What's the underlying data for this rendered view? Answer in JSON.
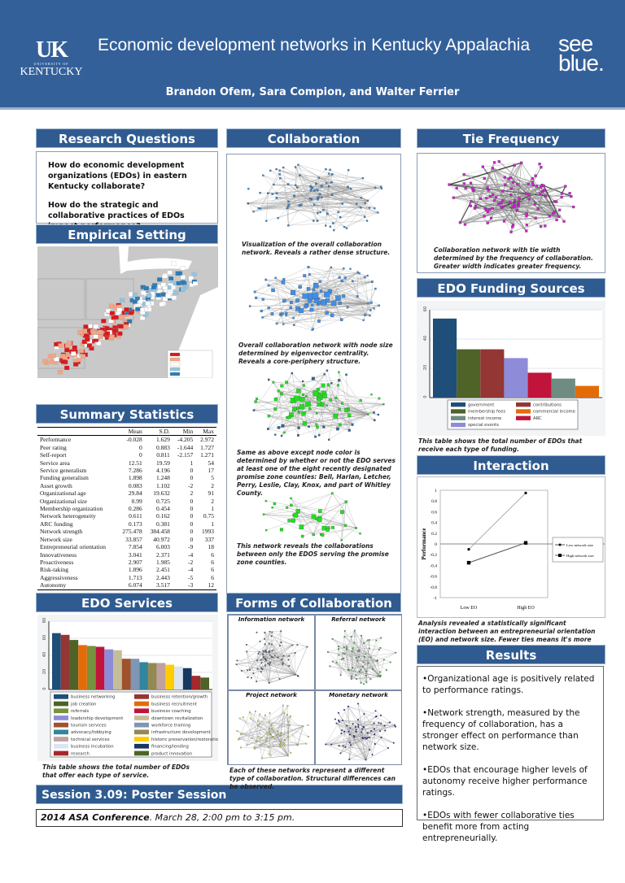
{
  "header": {
    "title": "Economic development networks in Kentucky Appalachia",
    "authors": "Brandon Ofem, Sara Compion, and Walter Ferrier",
    "logo_left": {
      "mark": "UK",
      "sub": "UNIVERSITY OF",
      "name": "KENTUCKY"
    },
    "logo_right": [
      "see",
      "blue."
    ]
  },
  "colors": {
    "header_bg": "#34609a",
    "section_bg": "#2f5b90"
  },
  "research_questions": {
    "title": "Research Questions",
    "items": [
      "How do economic development organizations (EDOs) in eastern Kentucky collaborate?",
      "How do the strategic and collaborative practices of EDOs impact performance?"
    ]
  },
  "empirical_setting": {
    "title": "Empirical Setting"
  },
  "summary": {
    "title": "Summary Statistics",
    "columns": [
      "",
      "Mean",
      "S.D.",
      "Min",
      "Max"
    ],
    "rows": [
      [
        "Performance",
        "-0.028",
        "1.629",
        "-4.205",
        "2.972"
      ],
      [
        "Peer rating",
        "0",
        "0.883",
        "-1.644",
        "1.727"
      ],
      [
        "Self-report",
        "0",
        "0.811",
        "-2.157",
        "1.271"
      ],
      [
        "Service area",
        "12.51",
        "19.59",
        "1",
        "54"
      ],
      [
        "Service generalism",
        "7.286",
        "4.196",
        "0",
        "17"
      ],
      [
        "Funding generalism",
        "1.898",
        "1.248",
        "0",
        "5"
      ],
      [
        "Asset growth",
        "0.083",
        "1.102",
        "-2",
        "2"
      ],
      [
        "Organizational age",
        "29.84",
        "19.632",
        "2",
        "91"
      ],
      [
        "Organizational size",
        "0.99",
        "0.725",
        "0",
        "2"
      ],
      [
        "Membership organization",
        "0.286",
        "0.454",
        "0",
        "1"
      ],
      [
        "Network heterogeneity",
        "0.611",
        "0.162",
        "0",
        "0.75"
      ],
      [
        "ARC funding",
        "0.173",
        "0.381",
        "0",
        "1"
      ],
      [
        "Network strength",
        "275.478",
        "384.458",
        "0",
        "1993"
      ],
      [
        "Network size",
        "33.857",
        "40.972",
        "0",
        "337"
      ],
      [
        "Entrepreneurial orientation",
        "7.854",
        "6.003",
        "-9",
        "18"
      ],
      [
        "Innovativeness",
        "3.041",
        "2.371",
        "-4",
        "6"
      ],
      [
        "Proactiveness",
        "2.907",
        "1.985",
        "-2",
        "6"
      ],
      [
        "Risk-taking",
        "1.896",
        "2.451",
        "-4",
        "6"
      ],
      [
        "Aggressiveness",
        "1.713",
        "2.443",
        "-5",
        "6"
      ],
      [
        "Autonomy",
        "6.074",
        "3.517",
        "-3",
        "12"
      ]
    ]
  },
  "services": {
    "title": "EDO Services",
    "caption": "This table shows the total number of EDOs that offer each type of service."
  },
  "collaboration": {
    "title": "Collaboration",
    "captions": [
      "Visualization of the overall collaboration network. Reveals a rather dense structure.",
      "Overall collaboration network with node size determined by eigenvector centrality. Reveals a core-periphery structure.",
      "Same as above except node color is determined by whether or not the EDO serves at least one of the eight recently designated promise zone counties: Bell, Harlan, Letcher, Perry, Leslie, Clay, Knox, and part of Whitley County.",
      "This network reveals the collaborations between  only the EDOS serving the promise zone counties."
    ]
  },
  "forms": {
    "title": "Forms of Collaboration",
    "panels": [
      "Information network",
      "Referral network",
      "Project network",
      "Monetary network"
    ],
    "caption": "Each of these networks represent a different type of collaboration. Structural differences can be observed."
  },
  "tie_frequency": {
    "title": "Tie Frequency",
    "caption": "Collaboration network with tie width determined by the frequency of collaboration. Greater width indicates greater frequency."
  },
  "funding": {
    "title": "EDO Funding Sources",
    "caption": "This table shows the total number of EDOs that receive each type of funding."
  },
  "interaction": {
    "title": "Interaction",
    "caption": "Analysis revealed a statistically significant interaction between an entrepreneurial orientation (EO) and network size. Fewer ties means it's more important to act entrepreneurially."
  },
  "results": {
    "title": "Results",
    "items": [
      "•Organizational age is positively related to performance ratings.",
      "•Network strength, measured by the frequency of collaboration, has a stronger effect on performance than network size.",
      "•EDOs that encourage higher levels of autonomy receive higher performance ratings.",
      "•EDOs with fewer collaborative ties benefit more from acting entrepreneurially."
    ]
  },
  "session": {
    "title": "Session 3.09: Poster Session",
    "conference": "2014 ASA Conference",
    "details": ". March 28, 2:00 pm to 3:15 pm."
  },
  "chart_data": [
    {
      "id": "services",
      "type": "bar",
      "ylim": [
        0,
        80
      ],
      "yticks": [
        0,
        20,
        40,
        60,
        80
      ],
      "legend": "bottom",
      "categories": [
        "business networking",
        "business retention/growth",
        "job creation",
        "business recruitment",
        "referrals",
        "business coaching",
        "leadership development",
        "downtown revitalization",
        "tourism services",
        "workforce training",
        "advocacy/lobbying",
        "infrastructure development",
        "technical services",
        "historic preservation/restoration",
        "business incubation",
        "financing/lending",
        "research",
        "product innovation"
      ],
      "values": [
        66,
        64,
        58,
        52,
        51,
        50,
        47,
        46,
        36,
        36,
        32,
        31,
        31,
        29,
        27,
        25,
        16,
        14
      ],
      "colors": [
        "#1f4e79",
        "#943634",
        "#4f6228",
        "#e36c09",
        "#76923c",
        "#c0143c",
        "#8e8cd8",
        "#c4bd97",
        "#a0522d",
        "#7f96b5",
        "#31859c",
        "#938953",
        "#c0a0a0",
        "#ffcc00",
        "#dbe5f1",
        "#17375e",
        "#a5282d",
        "#4f6228"
      ]
    },
    {
      "id": "funding",
      "type": "bar",
      "ylim": [
        0,
        60
      ],
      "yticks": [
        0,
        20,
        40,
        60
      ],
      "legend": "bottom",
      "categories": [
        "government",
        "membership fees",
        "contributions",
        "special events",
        "ARC",
        "interest income",
        "commercial income"
      ],
      "values": [
        54,
        33,
        33,
        27,
        17,
        13,
        8
      ],
      "colors": [
        "#1f4e79",
        "#4f6228",
        "#943634",
        "#8e8cd8",
        "#c0143c",
        "#6e8c82",
        "#e36c09"
      ],
      "legend_order": [
        "government",
        "contributions",
        "membership fees",
        "commercial income",
        "interest income",
        "ARC",
        "special events"
      ]
    },
    {
      "id": "interaction",
      "type": "line",
      "ylabel": "Performance",
      "categories": [
        "Low EO",
        "High EO"
      ],
      "ylim": [
        -1,
        1
      ],
      "yticks": [
        "1",
        "0.8",
        "0.6",
        "0.4",
        "0.2",
        "0",
        "-0.2",
        "-0.4",
        "-0.6",
        "-0.8",
        "-1"
      ],
      "legend": "right",
      "series": [
        {
          "name": "Low network size",
          "values": [
            -0.1,
            0.95
          ],
          "marker": "dot"
        },
        {
          "name": "High network size",
          "values": [
            -0.35,
            0.02
          ],
          "marker": "square"
        }
      ]
    }
  ]
}
